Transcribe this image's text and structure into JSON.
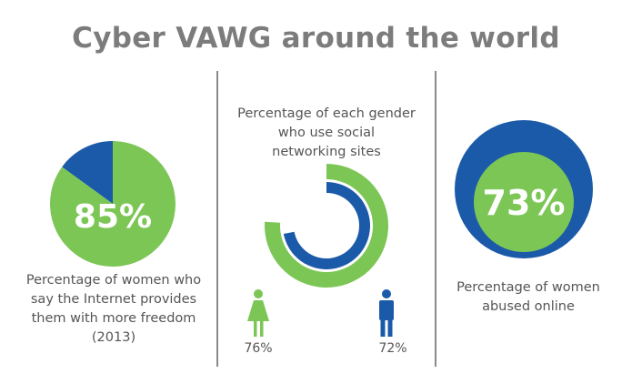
{
  "title": "Cyber VAWG around the world",
  "colors": {
    "green": "#7cc656",
    "blue": "#1b5aa8",
    "title": "#7c7c7c",
    "text": "#555555"
  },
  "chart_data": [
    {
      "type": "pie",
      "values": [
        85,
        15
      ],
      "value_label": "85%",
      "caption_lines": [
        "Percentage of women who",
        "say the Internet provides",
        "them with more freedom",
        "(2013)"
      ]
    },
    {
      "type": "donut",
      "caption_lines": [
        "Percentage of each gender",
        "who use social",
        "networking sites"
      ],
      "series": [
        {
          "icon": "female-icon",
          "value": 76,
          "label": "76%"
        },
        {
          "icon": "male-icon",
          "value": 72,
          "label": "72%"
        }
      ]
    },
    {
      "type": "bubble",
      "value": 73,
      "value_label": "73%",
      "caption_lines": [
        "Percentage of women",
        "abused online"
      ]
    }
  ]
}
